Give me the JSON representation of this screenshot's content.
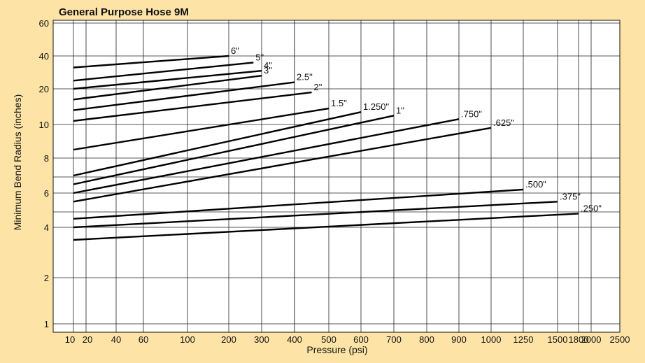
{
  "chart_data": {
    "type": "line",
    "title": "General Purpose Hose 9M",
    "xlabel": "Pressure (psi)",
    "ylabel": "Minimum Bend Radius (inches)",
    "x_ticks": [
      "10",
      "20",
      "40",
      "60",
      "100",
      "200",
      "300",
      "400",
      "500",
      "600",
      "700",
      "800",
      "900",
      "1000",
      "1250",
      "1500",
      "1800",
      "2000",
      "2500"
    ],
    "y_ticks": [
      "1",
      "2",
      "4",
      "6",
      "8",
      "10",
      "20",
      "40",
      "60"
    ],
    "grid": true,
    "legend": "inline labels at line ends",
    "series": [
      {
        "name": "6\"",
        "x": [
          10,
          200
        ],
        "y": [
          33,
          40
        ]
      },
      {
        "name": "5\"",
        "x": [
          10,
          275
        ],
        "y": [
          25,
          36
        ]
      },
      {
        "name": "4\"",
        "x": [
          10,
          300
        ],
        "y": [
          20,
          31
        ]
      },
      {
        "name": "3\"",
        "x": [
          10,
          300
        ],
        "y": [
          17,
          28
        ]
      },
      {
        "name": "2.5\"",
        "x": [
          10,
          400
        ],
        "y": [
          14,
          24
        ]
      },
      {
        "name": "2\"",
        "x": [
          10,
          450
        ],
        "y": [
          11,
          19
        ]
      },
      {
        "name": "1.5\"",
        "x": [
          10,
          500
        ],
        "y": [
          8.5,
          14.5
        ]
      },
      {
        "name": "1.250\"",
        "x": [
          10,
          600
        ],
        "y": [
          7,
          13.5
        ]
      },
      {
        "name": "1\"",
        "x": [
          10,
          700
        ],
        "y": [
          6.5,
          12.5
        ]
      },
      {
        "name": ".750\"",
        "x": [
          10,
          900
        ],
        "y": [
          6,
          11.5
        ]
      },
      {
        "name": ".625\"",
        "x": [
          10,
          1000
        ],
        "y": [
          5.5,
          9.8
        ]
      },
      {
        "name": ".500\"",
        "x": [
          10,
          1250
        ],
        "y": [
          4.5,
          6.2
        ]
      },
      {
        "name": ".375\"",
        "x": [
          10,
          1500
        ],
        "y": [
          4,
          5.5
        ]
      },
      {
        "name": ".250\"",
        "x": [
          10,
          1800
        ],
        "y": [
          3.5,
          4.8
        ]
      }
    ]
  }
}
